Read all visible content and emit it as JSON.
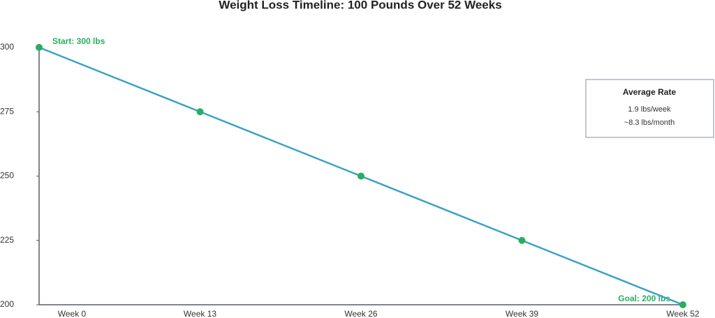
{
  "chart_data": {
    "type": "line",
    "title": "Weight Loss Timeline: 100 Pounds Over 52 Weeks",
    "categories": [
      "Week 0",
      "Week 13",
      "Week 26",
      "Week 39",
      "Week 52"
    ],
    "series": [
      {
        "name": "Weight",
        "color": "#3aa3c4",
        "marker_color": "#27ae60",
        "values": [
          300,
          275,
          250,
          225,
          200
        ]
      }
    ],
    "ylim": [
      200,
      300
    ],
    "yticks": [
      200,
      225,
      250,
      275,
      300
    ],
    "grid": false,
    "annotations": {
      "start": "Start: 300 lbs",
      "goal": "Goal: 200 lbs"
    },
    "info_box": {
      "title": "Average Rate",
      "lines": [
        "1.9 lbs/week",
        "~8.3 lbs/month"
      ]
    }
  }
}
